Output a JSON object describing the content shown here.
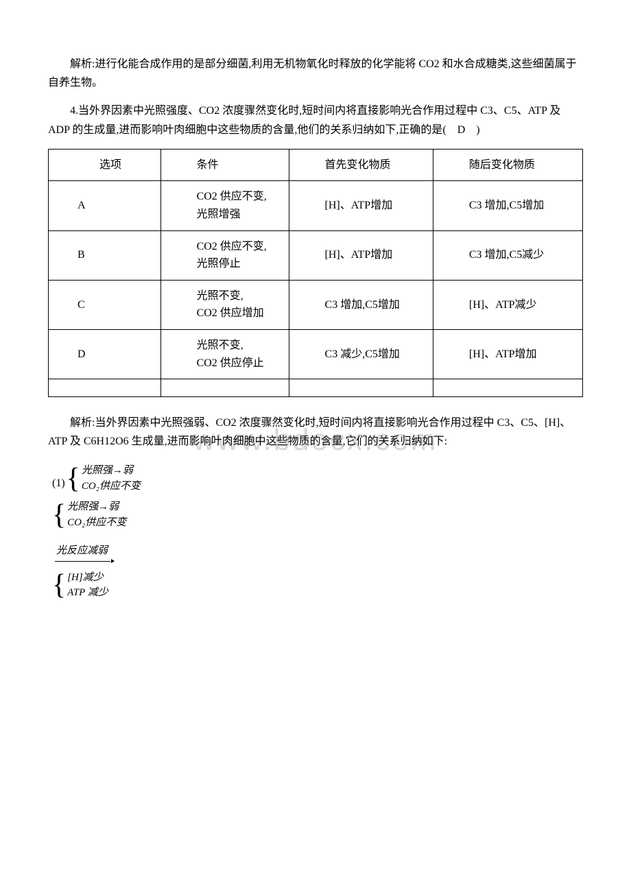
{
  "watermark": "www.bdocx.com",
  "para1": "解析:进行化能合成作用的是部分细菌,利用无机物氧化时释放的化学能将 CO2 和水合成糖类,这些细菌属于自养生物。",
  "para2": "4.当外界因素中光照强度、CO2 浓度骤然变化时,短时间内将直接影响光合作用过程中 C3、C5、ATP 及 ADP 的生成量,进而影响叶肉细胞中这些物质的含量,他们的关系归纳如下,正确的是(　D　)",
  "table": {
    "header": {
      "c1": "选项",
      "c2": "条件",
      "c3": "首先变化物质",
      "c4": "随后变化物质"
    },
    "rows": [
      {
        "c1": "A",
        "c2a": "CO2 供应不变,",
        "c2b": "光照增强",
        "c3": "[H]、ATP增加",
        "c4": "C3 增加,C5增加"
      },
      {
        "c1": "B",
        "c2a": "CO2 供应不变,",
        "c2b": "光照停止",
        "c3": "[H]、ATP增加",
        "c4": "C3 增加,C5减少"
      },
      {
        "c1": "C",
        "c2a": "光照不变,",
        "c2b": "CO2 供应增加",
        "c3": "C3 增加,C5增加",
        "c4": "[H]、ATP减少"
      },
      {
        "c1": "D",
        "c2a": "光照不变,",
        "c2b": "CO2 供应停止",
        "c3": "C3 减少,C5增加",
        "c4": "[H]、ATP增加"
      }
    ]
  },
  "para3": "解析:当外界因素中光照强弱、CO2 浓度骤然变化时,短时间内将直接影响光合作用过程中 C3、C5、[H]、ATP 及 C6H12O6 生成量,进而影响叶肉细胞中这些物质的含量,它们的关系归纳如下:",
  "formula": {
    "prefix": "(1)",
    "group1": {
      "l1": "光照强→弱",
      "l2": "CO₂供应不变"
    },
    "group2": {
      "l1": "光照强→弱",
      "l2": "CO₂供应不变"
    },
    "reaction": "光反应减弱",
    "group3": {
      "l1": "[H]减少",
      "l2": "ATP 减少"
    }
  }
}
